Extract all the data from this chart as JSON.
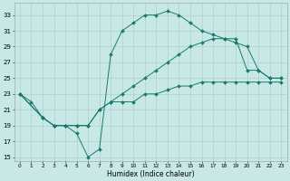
{
  "xlabel": "Humidex (Indice chaleur)",
  "background_color": "#c8e8e5",
  "grid_color": "#a8ccc8",
  "line_color": "#1a7a70",
  "xlim": [
    -0.5,
    23.5
  ],
  "ylim": [
    14.5,
    34.5
  ],
  "yticks": [
    15,
    17,
    19,
    21,
    23,
    25,
    27,
    29,
    31,
    33
  ],
  "xticks": [
    0,
    1,
    2,
    3,
    4,
    5,
    6,
    7,
    8,
    9,
    10,
    11,
    12,
    13,
    14,
    15,
    16,
    17,
    18,
    19,
    20,
    21,
    22,
    23
  ],
  "line_upper_x": [
    0,
    1,
    2,
    3,
    4,
    5,
    6,
    7,
    8,
    9,
    10,
    11,
    12,
    13,
    14,
    15,
    16,
    17,
    18,
    19,
    20,
    21,
    22,
    23
  ],
  "line_upper_y": [
    23,
    22,
    20,
    19,
    19,
    18,
    15,
    16,
    28,
    31,
    32,
    33,
    33,
    33.5,
    33,
    32,
    31,
    30.5,
    30,
    30,
    26,
    26,
    25,
    25
  ],
  "line_mid_x": [
    0,
    2,
    3,
    4,
    5,
    6,
    7,
    8,
    9,
    10,
    11,
    12,
    13,
    14,
    15,
    16,
    17,
    18,
    19,
    20,
    21,
    22,
    23
  ],
  "line_mid_y": [
    23,
    20,
    19,
    19,
    19,
    19,
    21,
    22,
    23,
    24,
    25,
    26,
    27,
    28,
    29,
    29.5,
    30,
    30,
    29.5,
    29,
    26,
    25,
    25
  ],
  "line_lower_x": [
    0,
    2,
    3,
    4,
    5,
    6,
    7,
    8,
    9,
    10,
    11,
    12,
    13,
    14,
    15,
    16,
    17,
    18,
    19,
    20,
    21,
    22,
    23
  ],
  "line_lower_y": [
    23,
    20,
    19,
    19,
    19,
    19,
    21,
    22,
    22,
    22,
    23,
    23,
    23.5,
    24,
    24,
    24.5,
    24.5,
    24.5,
    24.5,
    24.5,
    24.5,
    24.5,
    24.5
  ]
}
